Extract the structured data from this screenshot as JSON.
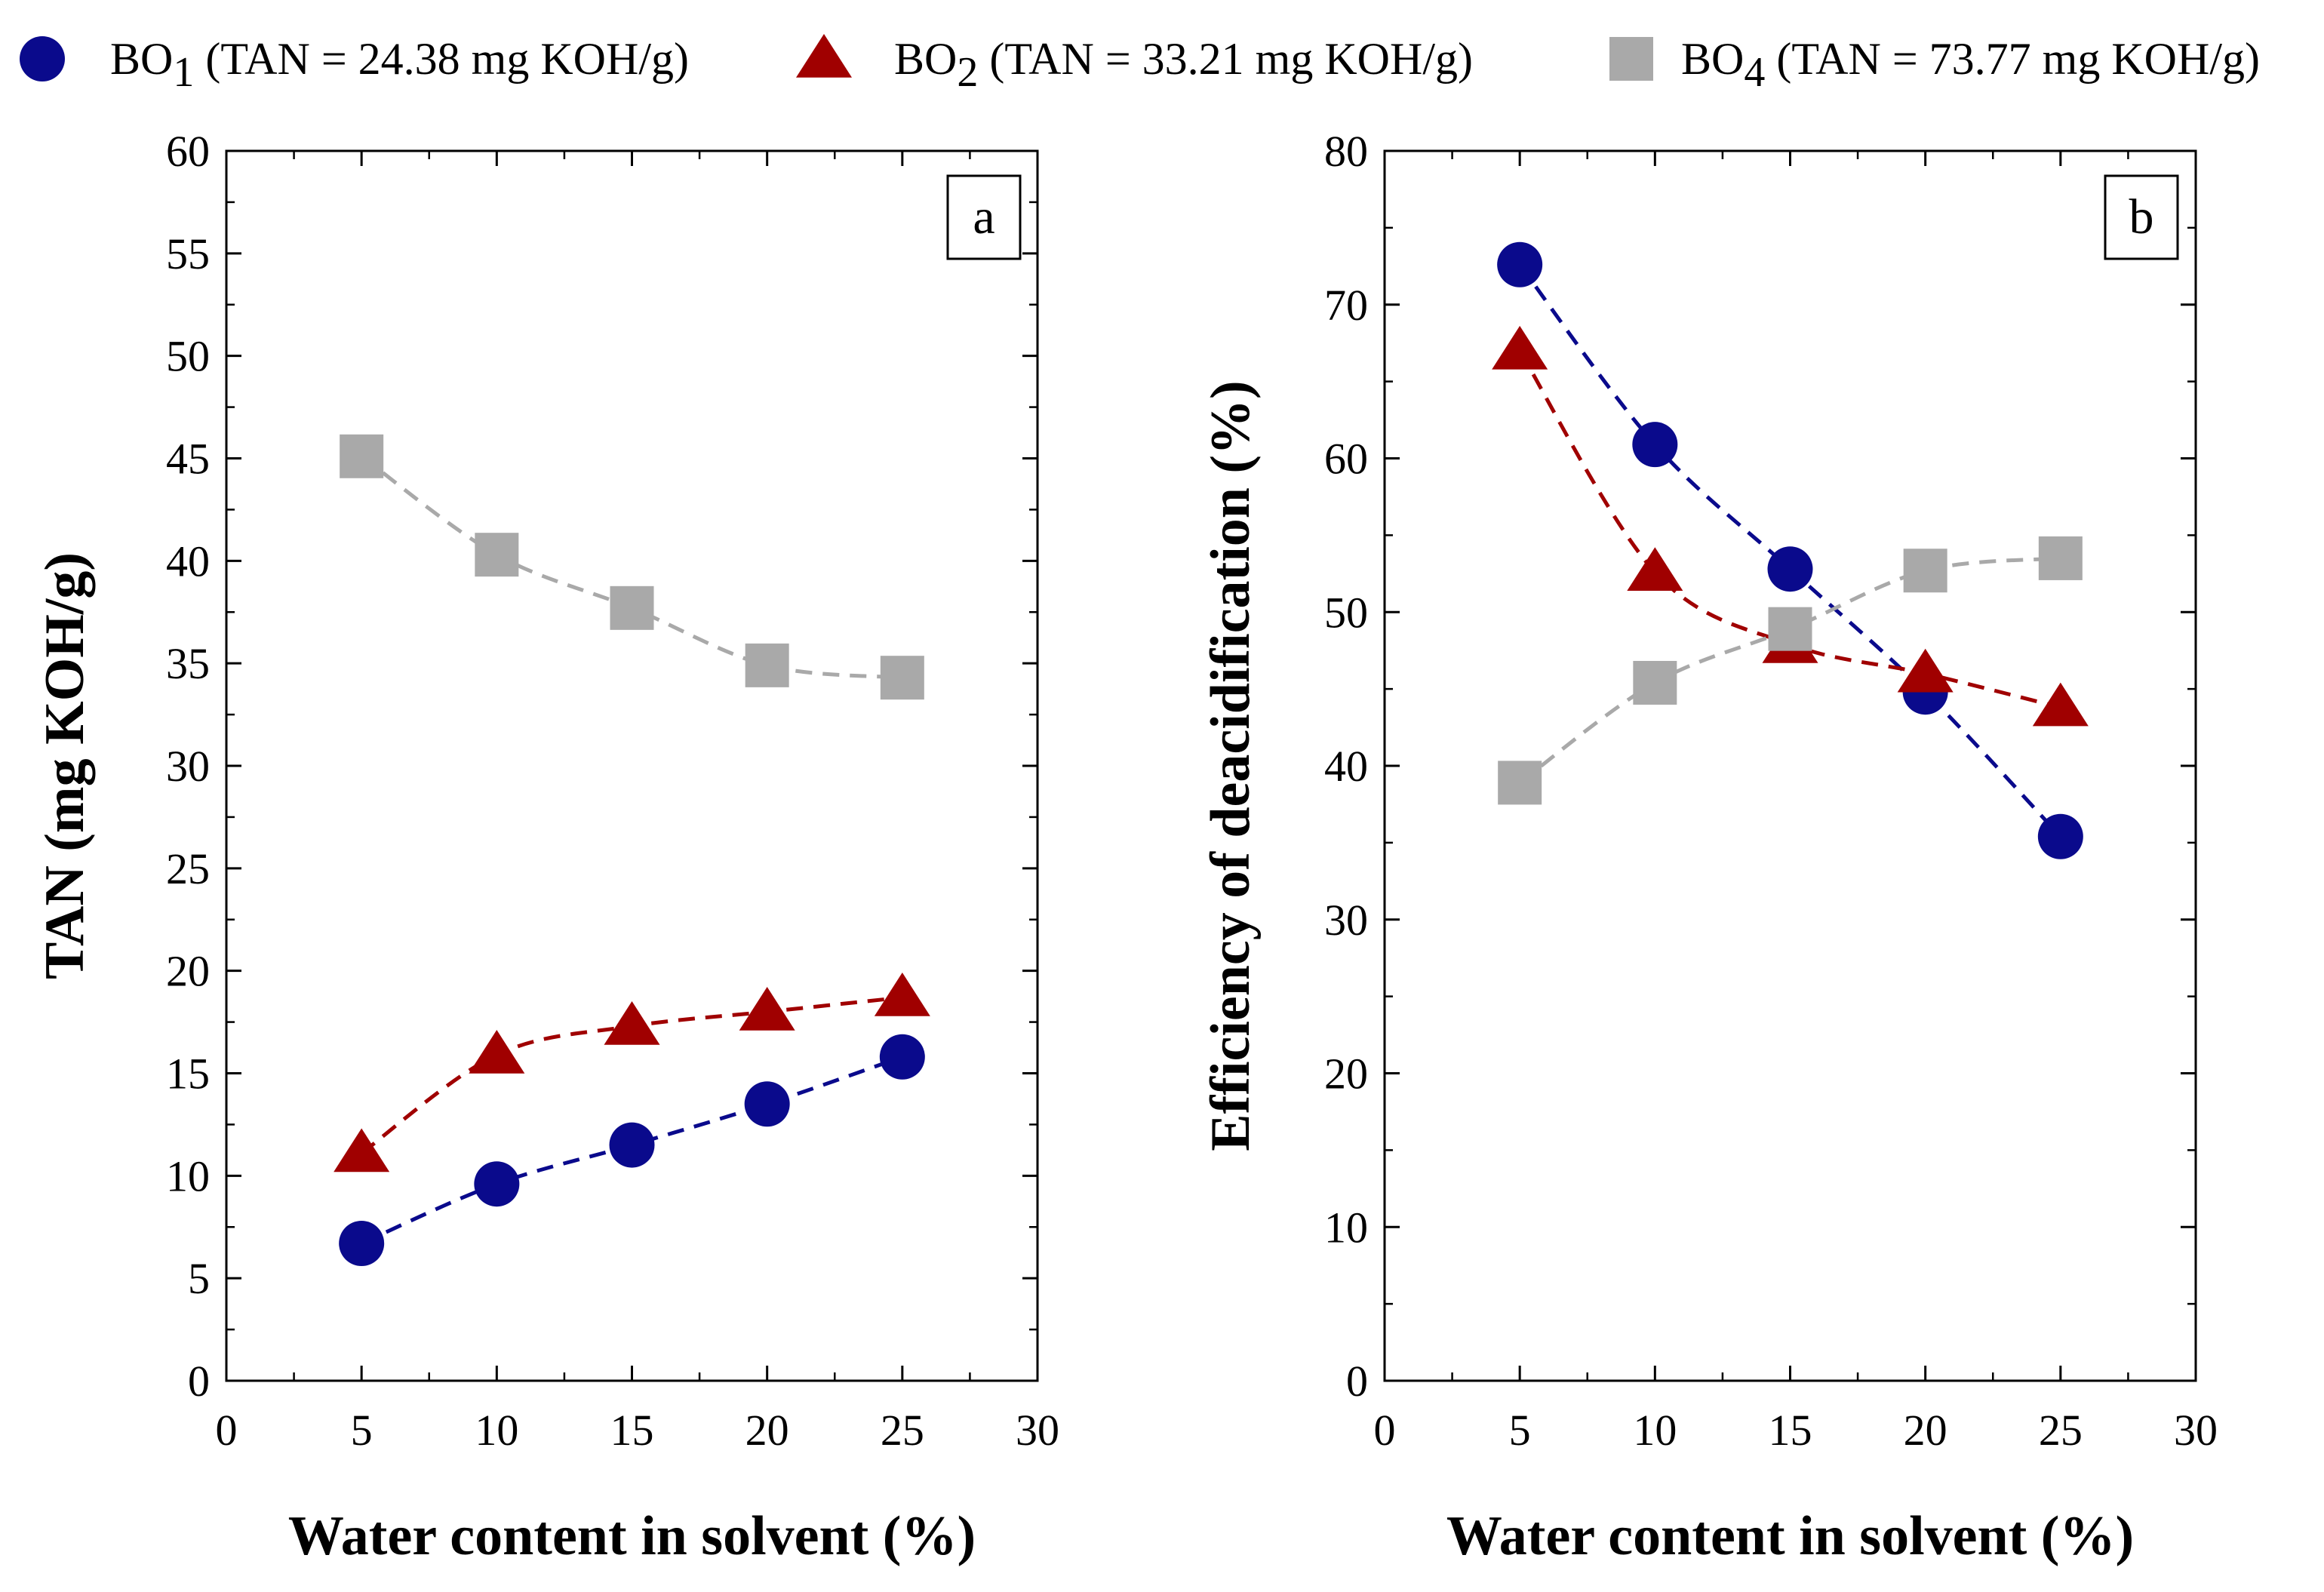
{
  "legend": [
    {
      "base": "BO",
      "sub": "1",
      "rest": " (TAN = 24.38 mg KOH/g)",
      "marker": "circle",
      "color": "#0a0a8c"
    },
    {
      "base": "BO",
      "sub": "2",
      "rest": " (TAN = 33.21 mg KOH/g)",
      "marker": "triangle",
      "color": "#a00000"
    },
    {
      "base": "BO",
      "sub": "4",
      "rest": " (TAN = 73.77 mg KOH/g)",
      "marker": "square",
      "color": "#a9a9a9"
    }
  ],
  "chart_data": [
    {
      "type": "scatter",
      "panel_label": "a",
      "xlabel": "Water content in solvent (%)",
      "ylabel": "TAN (mg KOH/g)",
      "xlim": [
        0,
        30
      ],
      "ylim": [
        0,
        60
      ],
      "xticks": [
        0,
        5,
        10,
        15,
        20,
        25,
        30
      ],
      "yticks": [
        0,
        5,
        10,
        15,
        20,
        25,
        30,
        35,
        40,
        45,
        50,
        55,
        60
      ],
      "series": [
        {
          "name": "BO1",
          "marker": "circle",
          "color": "#0a0a8c",
          "x": [
            5,
            10,
            15,
            20,
            25
          ],
          "y": [
            6.7,
            9.6,
            11.5,
            13.5,
            15.8
          ]
        },
        {
          "name": "BO2",
          "marker": "triangle",
          "color": "#a00000",
          "x": [
            5,
            10,
            15,
            20,
            25
          ],
          "y": [
            11.1,
            15.9,
            17.3,
            18.0,
            18.7
          ]
        },
        {
          "name": "BO4",
          "marker": "square",
          "color": "#a9a9a9",
          "x": [
            5,
            10,
            15,
            20,
            25
          ],
          "y": [
            45.1,
            40.3,
            37.7,
            34.9,
            34.3
          ]
        }
      ]
    },
    {
      "type": "scatter",
      "panel_label": "b",
      "xlabel": "Water content in solvent (%)",
      "ylabel": "Efficiency of deacidification (%)",
      "xlim": [
        0,
        30
      ],
      "ylim": [
        0,
        80
      ],
      "xticks": [
        0,
        5,
        10,
        15,
        20,
        25,
        30
      ],
      "yticks": [
        0,
        10,
        20,
        30,
        40,
        50,
        60,
        70,
        80
      ],
      "series": [
        {
          "name": "BO1",
          "marker": "circle",
          "color": "#0a0a8c",
          "x": [
            5,
            10,
            15,
            20,
            25
          ],
          "y": [
            72.6,
            60.9,
            52.8,
            44.8,
            35.4
          ]
        },
        {
          "name": "BO2",
          "marker": "triangle",
          "color": "#a00000",
          "x": [
            5,
            10,
            15,
            20,
            25
          ],
          "y": [
            67.0,
            52.6,
            47.9,
            46.0,
            43.8
          ]
        },
        {
          "name": "BO4",
          "marker": "square",
          "color": "#a9a9a9",
          "x": [
            5,
            10,
            15,
            20,
            25
          ],
          "y": [
            38.9,
            45.4,
            48.9,
            52.7,
            53.5
          ]
        }
      ]
    }
  ]
}
